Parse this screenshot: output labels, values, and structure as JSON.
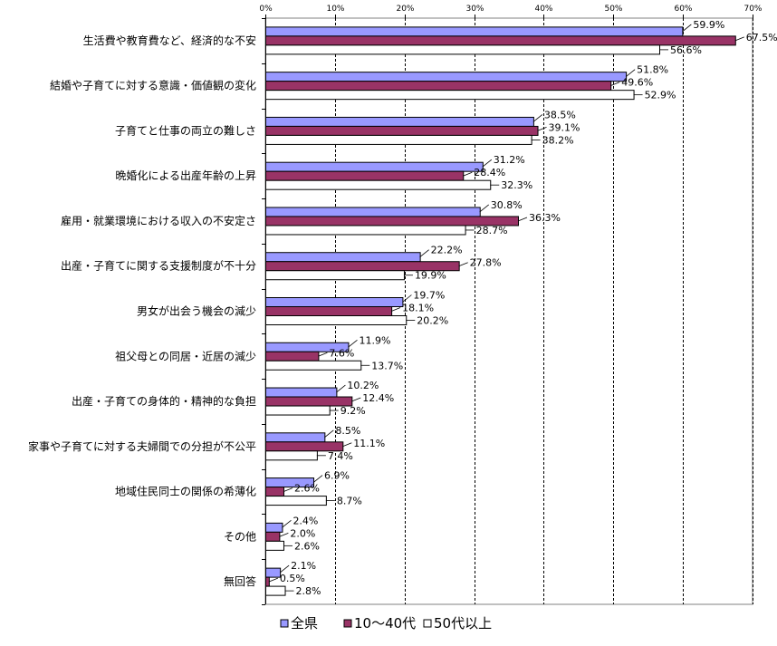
{
  "chart_data": {
    "type": "bar",
    "orientation": "horizontal",
    "categories": [
      "生活費や教育費など、経済的な不安",
      "結婚や子育てに対する意識・価値観の変化",
      "子育てと仕事の両立の難しさ",
      "晩婚化による出産年齢の上昇",
      "雇用・就業環境における収入の不安定さ",
      "出産・子育てに関する支援制度が不十分",
      "男女が出会う機会の減少",
      "祖父母との同居・近居の減少",
      "出産・子育ての身体的・精神的な負担",
      "家事や子育てに対する夫婦間での分担が不公平",
      "地域住民同士の関係の希薄化",
      "その他",
      "無回答"
    ],
    "series": [
      {
        "name": "全県",
        "color": "#9999ff",
        "values": [
          59.9,
          51.8,
          38.5,
          31.2,
          30.8,
          22.2,
          19.7,
          11.9,
          10.2,
          8.5,
          6.9,
          2.4,
          2.1
        ]
      },
      {
        "name": "10〜40代",
        "color": "#993366",
        "values": [
          67.5,
          49.6,
          39.1,
          28.4,
          36.3,
          27.8,
          18.1,
          7.6,
          12.4,
          11.1,
          2.6,
          2.0,
          0.5
        ]
      },
      {
        "name": "50代以上",
        "color": "#ffffff",
        "values": [
          56.6,
          52.9,
          38.2,
          32.3,
          28.7,
          19.9,
          20.2,
          13.7,
          9.2,
          7.4,
          8.7,
          2.6,
          2.8
        ]
      }
    ],
    "data_labels": [
      [
        "59.9%",
        "51.8%",
        "38.5%",
        "31.2%",
        "30.8%",
        "22.2%",
        "19.7%",
        "11.9%",
        "10.2%",
        "8.5%",
        "6.9%",
        "2.4%",
        "2.1%"
      ],
      [
        "67.5%",
        "49.6%",
        "39.1%",
        "28.4%",
        "36.3%",
        "27.8%",
        "18.1%",
        "7.6%",
        "12.4%",
        "11.1%",
        "2.6%",
        "2.0%",
        "0.5%"
      ],
      [
        "56.6%",
        "52.9%",
        "38.2%",
        "32.3%",
        "28.7%",
        "19.9%",
        "20.2%",
        "13.7%",
        "9.2%",
        "7.4%",
        "8.7%",
        "2.6%",
        "2.8%"
      ]
    ],
    "xlim": [
      0,
      70
    ],
    "xticks": [
      0,
      10,
      20,
      30,
      40,
      50,
      60,
      70
    ],
    "xtick_labels": [
      "0%",
      "10%",
      "20%",
      "30%",
      "40%",
      "50%",
      "60%",
      "70%"
    ],
    "grid": "vertical-dashed",
    "legend_position": "bottom",
    "title": "",
    "xlabel": "",
    "ylabel": ""
  }
}
